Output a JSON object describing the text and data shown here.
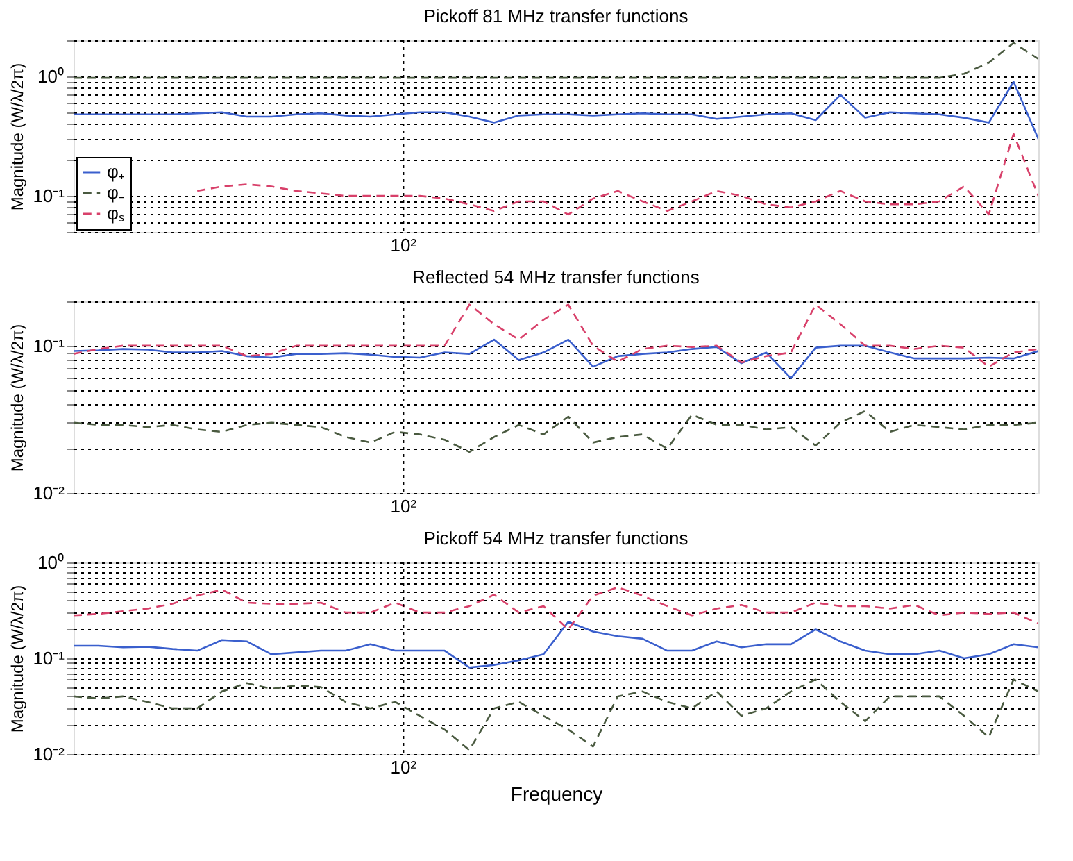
{
  "chart_data": [
    {
      "type": "line",
      "title": "Pickoff 81 MHz transfer functions",
      "ylabel": "Magnitude (W/λ/2π)",
      "log": "y",
      "grid": "y",
      "legend": "bottom left",
      "annotations": [
        "10²"
      ],
      "ylim": [
        0.05,
        2
      ],
      "yticks": [
        {
          "value": 0.05,
          "label": null
        },
        {
          "value": 0.06,
          "label": null
        },
        {
          "value": 0.07,
          "label": null
        },
        {
          "value": 0.08,
          "label": null
        },
        {
          "value": 0.09,
          "label": null
        },
        {
          "value": 0.1,
          "label": "10⁻¹"
        },
        {
          "value": 0.2,
          "label": null
        },
        {
          "value": 0.3,
          "label": null
        },
        {
          "value": 0.4,
          "label": null
        },
        {
          "value": 0.5,
          "label": null
        },
        {
          "value": 0.6,
          "label": null
        },
        {
          "value": 0.7,
          "label": null
        },
        {
          "value": 0.8,
          "label": null
        },
        {
          "value": 0.9,
          "label": null
        },
        {
          "value": 1,
          "label": "10⁰"
        },
        {
          "value": 2,
          "label": null
        }
      ],
      "categories": [
        null,
        null,
        null,
        null,
        null,
        null,
        null,
        null,
        null,
        null,
        null,
        null,
        null,
        null,
        null,
        null,
        null,
        null,
        null,
        null,
        null,
        null,
        null,
        null,
        null,
        null,
        null,
        null,
        null,
        null,
        null,
        null,
        null,
        null,
        null,
        null,
        null,
        null,
        null,
        null
      ],
      "series": [
        {
          "name": "φ₊",
          "color": "#3a5fcd",
          "line_style": "solid",
          "values": [
            0.48,
            0.48,
            0.48,
            0.48,
            0.48,
            0.49,
            0.5,
            0.46,
            0.46,
            0.48,
            0.49,
            0.47,
            0.46,
            0.48,
            0.5,
            0.5,
            0.46,
            0.41,
            0.47,
            0.48,
            0.48,
            0.47,
            0.48,
            0.49,
            0.48,
            0.48,
            0.44,
            0.46,
            0.48,
            0.49,
            0.43,
            0.7,
            0.45,
            0.5,
            0.49,
            0.48,
            0.45,
            0.41,
            0.9,
            0.3
          ]
        },
        {
          "name": "φ₋",
          "color": "#4a5a40",
          "line_style": "dashed",
          "values": [
            0.97,
            0.97,
            0.97,
            0.97,
            0.97,
            0.97,
            0.97,
            0.97,
            0.97,
            0.97,
            0.97,
            0.97,
            0.97,
            0.97,
            0.97,
            0.97,
            0.97,
            0.97,
            0.97,
            0.97,
            0.97,
            0.97,
            0.97,
            0.97,
            0.97,
            0.97,
            0.97,
            0.97,
            0.97,
            0.97,
            0.97,
            0.97,
            0.97,
            0.97,
            0.97,
            0.97,
            1.05,
            1.3,
            1.9,
            1.4
          ]
        },
        {
          "name": "φₛ",
          "color": "#d8406a",
          "line_style": "dashed",
          "values": [
            null,
            null,
            null,
            null,
            null,
            0.11,
            0.12,
            0.125,
            0.12,
            0.11,
            0.105,
            0.1,
            0.1,
            0.1,
            0.1,
            0.095,
            0.085,
            0.075,
            0.09,
            0.09,
            0.07,
            0.095,
            0.11,
            0.09,
            0.075,
            0.09,
            0.11,
            0.1,
            0.085,
            0.08,
            0.09,
            0.11,
            0.09,
            0.085,
            0.085,
            0.09,
            0.12,
            0.07,
            0.33,
            0.1
          ]
        }
      ]
    },
    {
      "type": "line",
      "title": "Reflected 54 MHz transfer functions",
      "ylabel": "Magnitude (W/λ/2π)",
      "log": "y",
      "grid": "y",
      "annotations": [
        "10²"
      ],
      "ylim": [
        0.01,
        0.2
      ],
      "yticks": [
        {
          "value": 0.01,
          "label": "10⁻²"
        },
        {
          "value": 0.02,
          "label": null
        },
        {
          "value": 0.03,
          "label": null
        },
        {
          "value": 0.04,
          "label": null
        },
        {
          "value": 0.05,
          "label": null
        },
        {
          "value": 0.06,
          "label": null
        },
        {
          "value": 0.07,
          "label": null
        },
        {
          "value": 0.08,
          "label": null
        },
        {
          "value": 0.09,
          "label": null
        },
        {
          "value": 0.1,
          "label": "10⁻¹"
        },
        {
          "value": 0.2,
          "label": null
        }
      ],
      "categories": [
        null,
        null,
        null,
        null,
        null,
        null,
        null,
        null,
        null,
        null,
        null,
        null,
        null,
        null,
        null,
        null,
        null,
        null,
        null,
        null,
        null,
        null,
        null,
        null,
        null,
        null,
        null,
        null,
        null,
        null,
        null,
        null,
        null,
        null,
        null,
        null,
        null,
        null,
        null,
        null
      ],
      "series": [
        {
          "color": "#3a5fcd",
          "line_style": "solid",
          "values": [
            0.092,
            0.093,
            0.095,
            0.094,
            0.09,
            0.09,
            0.092,
            0.085,
            0.083,
            0.088,
            0.088,
            0.089,
            0.087,
            0.084,
            0.083,
            0.09,
            0.088,
            0.11,
            0.08,
            0.09,
            0.11,
            0.072,
            0.085,
            0.088,
            0.09,
            0.095,
            0.098,
            0.076,
            0.09,
            0.06,
            0.097,
            0.1,
            0.1,
            0.09,
            0.082,
            0.082,
            0.082,
            0.083,
            0.082,
            0.092
          ]
        },
        {
          "color": "#4a5a40",
          "line_style": "dashed",
          "values": [
            0.03,
            0.029,
            0.029,
            0.028,
            0.029,
            0.027,
            0.026,
            0.029,
            0.03,
            0.029,
            0.028,
            0.024,
            0.022,
            0.026,
            0.025,
            0.023,
            0.019,
            0.024,
            0.029,
            0.025,
            0.033,
            0.022,
            0.024,
            0.025,
            0.02,
            0.034,
            0.029,
            0.029,
            0.027,
            0.028,
            0.021,
            0.03,
            0.036,
            0.026,
            0.029,
            0.028,
            0.027,
            0.029,
            0.029,
            0.03
          ]
        },
        {
          "color": "#d8406a",
          "line_style": "dashed",
          "values": [
            0.088,
            0.095,
            0.1,
            0.1,
            0.1,
            0.1,
            0.1,
            0.085,
            0.088,
            0.1,
            0.1,
            0.1,
            0.1,
            0.1,
            0.1,
            0.1,
            0.19,
            0.14,
            0.11,
            0.15,
            0.19,
            0.1,
            0.078,
            0.095,
            0.1,
            0.098,
            0.1,
            0.077,
            0.085,
            0.09,
            0.19,
            0.14,
            0.1,
            0.1,
            0.095,
            0.1,
            0.097,
            0.072,
            0.09,
            0.095
          ]
        }
      ]
    },
    {
      "type": "line",
      "title": "Pickoff 54 MHz transfer functions",
      "xlabel": "Frequency",
      "ylabel": "Magnitude (W/λ/2π)",
      "log": "y",
      "grid": "y",
      "annotations": [
        "10²"
      ],
      "ylim": [
        0.01,
        1
      ],
      "yticks": [
        {
          "value": 0.01,
          "label": "10⁻²"
        },
        {
          "value": 0.02,
          "label": null
        },
        {
          "value": 0.03,
          "label": null
        },
        {
          "value": 0.04,
          "label": null
        },
        {
          "value": 0.05,
          "label": null
        },
        {
          "value": 0.06,
          "label": null
        },
        {
          "value": 0.07,
          "label": null
        },
        {
          "value": 0.08,
          "label": null
        },
        {
          "value": 0.09,
          "label": null
        },
        {
          "value": 0.1,
          "label": "10⁻¹"
        },
        {
          "value": 0.2,
          "label": null
        },
        {
          "value": 0.3,
          "label": null
        },
        {
          "value": 0.4,
          "label": null
        },
        {
          "value": 0.5,
          "label": null
        },
        {
          "value": 0.6,
          "label": null
        },
        {
          "value": 0.7,
          "label": null
        },
        {
          "value": 0.8,
          "label": null
        },
        {
          "value": 0.9,
          "label": null
        },
        {
          "value": 1,
          "label": "10⁰"
        }
      ],
      "categories": [
        null,
        null,
        null,
        null,
        null,
        null,
        null,
        null,
        null,
        null,
        null,
        null,
        null,
        null,
        null,
        null,
        null,
        null,
        null,
        null,
        null,
        null,
        null,
        null,
        null,
        null,
        null,
        null,
        null,
        null,
        null,
        null,
        null,
        null,
        null,
        null,
        null,
        null,
        null,
        null
      ],
      "series": [
        {
          "color": "#3a5fcd",
          "line_style": "solid",
          "values": [
            0.135,
            0.135,
            0.13,
            0.132,
            0.125,
            0.12,
            0.155,
            0.15,
            0.11,
            0.115,
            0.12,
            0.12,
            0.14,
            0.12,
            0.12,
            0.12,
            0.08,
            0.085,
            0.095,
            0.11,
            0.24,
            0.19,
            0.17,
            0.16,
            0.12,
            0.12,
            0.15,
            0.13,
            0.14,
            0.14,
            0.2,
            0.15,
            0.12,
            0.11,
            0.11,
            0.12,
            0.1,
            0.11,
            0.14,
            0.13
          ]
        },
        {
          "color": "#4a5a40",
          "line_style": "dashed",
          "values": [
            0.04,
            0.038,
            0.04,
            0.035,
            0.03,
            0.03,
            0.045,
            0.055,
            0.048,
            0.052,
            0.05,
            0.035,
            0.03,
            0.035,
            0.025,
            0.018,
            0.011,
            0.03,
            0.035,
            0.025,
            0.018,
            0.012,
            0.04,
            0.045,
            0.035,
            0.03,
            0.045,
            0.025,
            0.03,
            0.045,
            0.06,
            0.035,
            0.022,
            0.04,
            0.04,
            0.04,
            0.025,
            0.015,
            0.06,
            0.045
          ]
        },
        {
          "color": "#d8406a",
          "line_style": "dashed",
          "values": [
            0.28,
            0.29,
            0.31,
            0.33,
            0.37,
            0.45,
            0.52,
            0.38,
            0.37,
            0.37,
            0.38,
            0.3,
            0.3,
            0.38,
            0.3,
            0.3,
            0.35,
            0.46,
            0.3,
            0.35,
            0.2,
            0.45,
            0.55,
            0.45,
            0.35,
            0.28,
            0.33,
            0.36,
            0.3,
            0.3,
            0.38,
            0.35,
            0.35,
            0.33,
            0.36,
            0.28,
            0.3,
            0.29,
            0.3,
            0.23
          ]
        }
      ]
    }
  ]
}
